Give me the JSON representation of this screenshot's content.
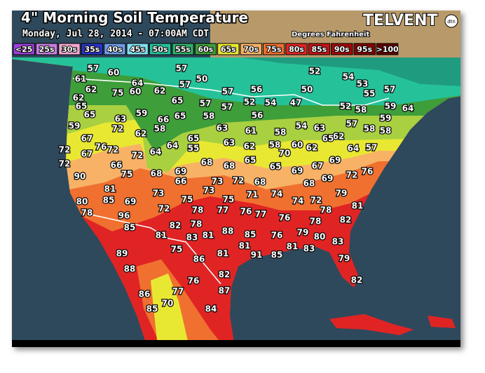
{
  "header": {
    "title": "4\" Morning Soil Temperature",
    "subtitle": "Monday, Jul 28, 2014 - 07:00AM CDT",
    "units": "Degrees Fahrenheit",
    "logo": "TELVENT",
    "logo_badge": "dtn"
  },
  "legend": [
    {
      "label": "<25",
      "color": "#9b3fd6"
    },
    {
      "label": "25s",
      "color": "#c87ee0"
    },
    {
      "label": "30s",
      "color": "#f2a6d0"
    },
    {
      "label": "35s",
      "color": "#2a34c8"
    },
    {
      "label": "40s",
      "color": "#6c9ae6"
    },
    {
      "label": "45s",
      "color": "#7fe0f0"
    },
    {
      "label": "50s",
      "color": "#25c29a"
    },
    {
      "label": "55s",
      "color": "#2fae6a"
    },
    {
      "label": "60s",
      "color": "#3e9e3a"
    },
    {
      "label": "65s",
      "color": "#e8e832"
    },
    {
      "label": "70s",
      "color": "#f8b266"
    },
    {
      "label": "75s",
      "color": "#f07030"
    },
    {
      "label": "80s",
      "color": "#e02424"
    },
    {
      "label": "85s",
      "color": "#c41414"
    },
    {
      "label": "90s",
      "color": "#a00808"
    },
    {
      "label": "95s",
      "color": "#820404"
    },
    {
      "label": ">100",
      "color": "#600000"
    }
  ],
  "readings": [
    "61",
    "57",
    "60",
    "62",
    "57",
    "50",
    "57",
    "52",
    "54",
    "53",
    "57",
    "55",
    "62",
    "65",
    "65",
    "75",
    "60",
    "64",
    "62",
    "65",
    "57",
    "57",
    "57",
    "56",
    "50",
    "52",
    "54",
    "47",
    "52",
    "58",
    "59",
    "64",
    "59",
    "63",
    "72",
    "59",
    "66",
    "58",
    "62",
    "65",
    "58",
    "63",
    "56",
    "61",
    "58",
    "54",
    "63",
    "57",
    "58",
    "59",
    "58",
    "62",
    "67",
    "76",
    "72",
    "72",
    "67",
    "72",
    "64",
    "64",
    "65",
    "55",
    "63",
    "62",
    "58",
    "70",
    "60",
    "62",
    "65",
    "64",
    "57",
    "72",
    "66",
    "75",
    "68",
    "69",
    "66",
    "68",
    "68",
    "65",
    "65",
    "69",
    "67",
    "69",
    "76",
    "90",
    "81",
    "73",
    "73",
    "73",
    "72",
    "68",
    "68",
    "69",
    "72",
    "80",
    "85",
    "69",
    "72",
    "75",
    "75",
    "71",
    "74",
    "74",
    "72",
    "79",
    "81",
    "78",
    "96",
    "78",
    "77",
    "76",
    "77",
    "76",
    "78",
    "78",
    "82",
    "85",
    "82",
    "78",
    "81",
    "83",
    "81",
    "88",
    "85",
    "76",
    "79",
    "80",
    "89",
    "75",
    "81",
    "81",
    "91",
    "85",
    "81",
    "83",
    "83",
    "88",
    "86",
    "82",
    "79",
    "76",
    "87",
    "82",
    "86",
    "77",
    "85",
    "70",
    "84"
  ]
}
